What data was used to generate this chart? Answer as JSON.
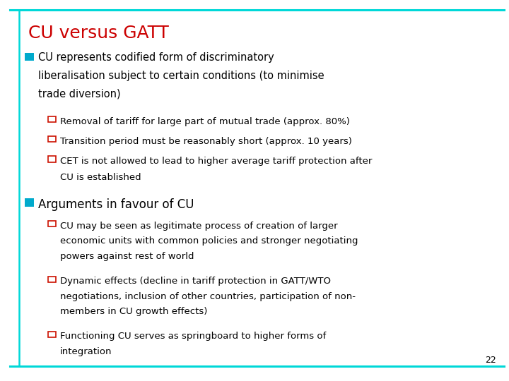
{
  "title": "CU versus GATT",
  "title_color": "#cc0000",
  "background_color": "#ffffff",
  "border_color": "#00d8d8",
  "bullet1_color": "#00aacc",
  "sub_bullet_color": "#cc1100",
  "text_color": "#000000",
  "bullet1_text_line1": "CU represents codified form of discriminatory",
  "bullet1_text_line2": "liberalisation subject to certain conditions (to minimise",
  "bullet1_text_line3": "trade diversion)",
  "sub1_line1": "Removal of tariff for large part of mutual trade (approx. 80%)",
  "sub1_line2": "Transition period must be reasonably short (approx. 10 years)",
  "sub1_line3a": "CET is not allowed to lead to higher average tariff protection after",
  "sub1_line3b": "CU is established",
  "bullet2_text": "Arguments in favour of CU",
  "sub2_line1a": "CU may be seen as legitimate process of creation of larger",
  "sub2_line1b": "economic units with common policies and stronger negotiating",
  "sub2_line1c": "powers against rest of world",
  "sub2_line2a": "Dynamic effects (decline in tariff protection in GATT/WTO",
  "sub2_line2b": "negotiations, inclusion of other countries, participation of non-",
  "sub2_line2c": "members in CU growth effects)",
  "sub2_line3a": "Functioning CU serves as springboard to higher forms of",
  "sub2_line3b": "integration",
  "page_number": "22"
}
